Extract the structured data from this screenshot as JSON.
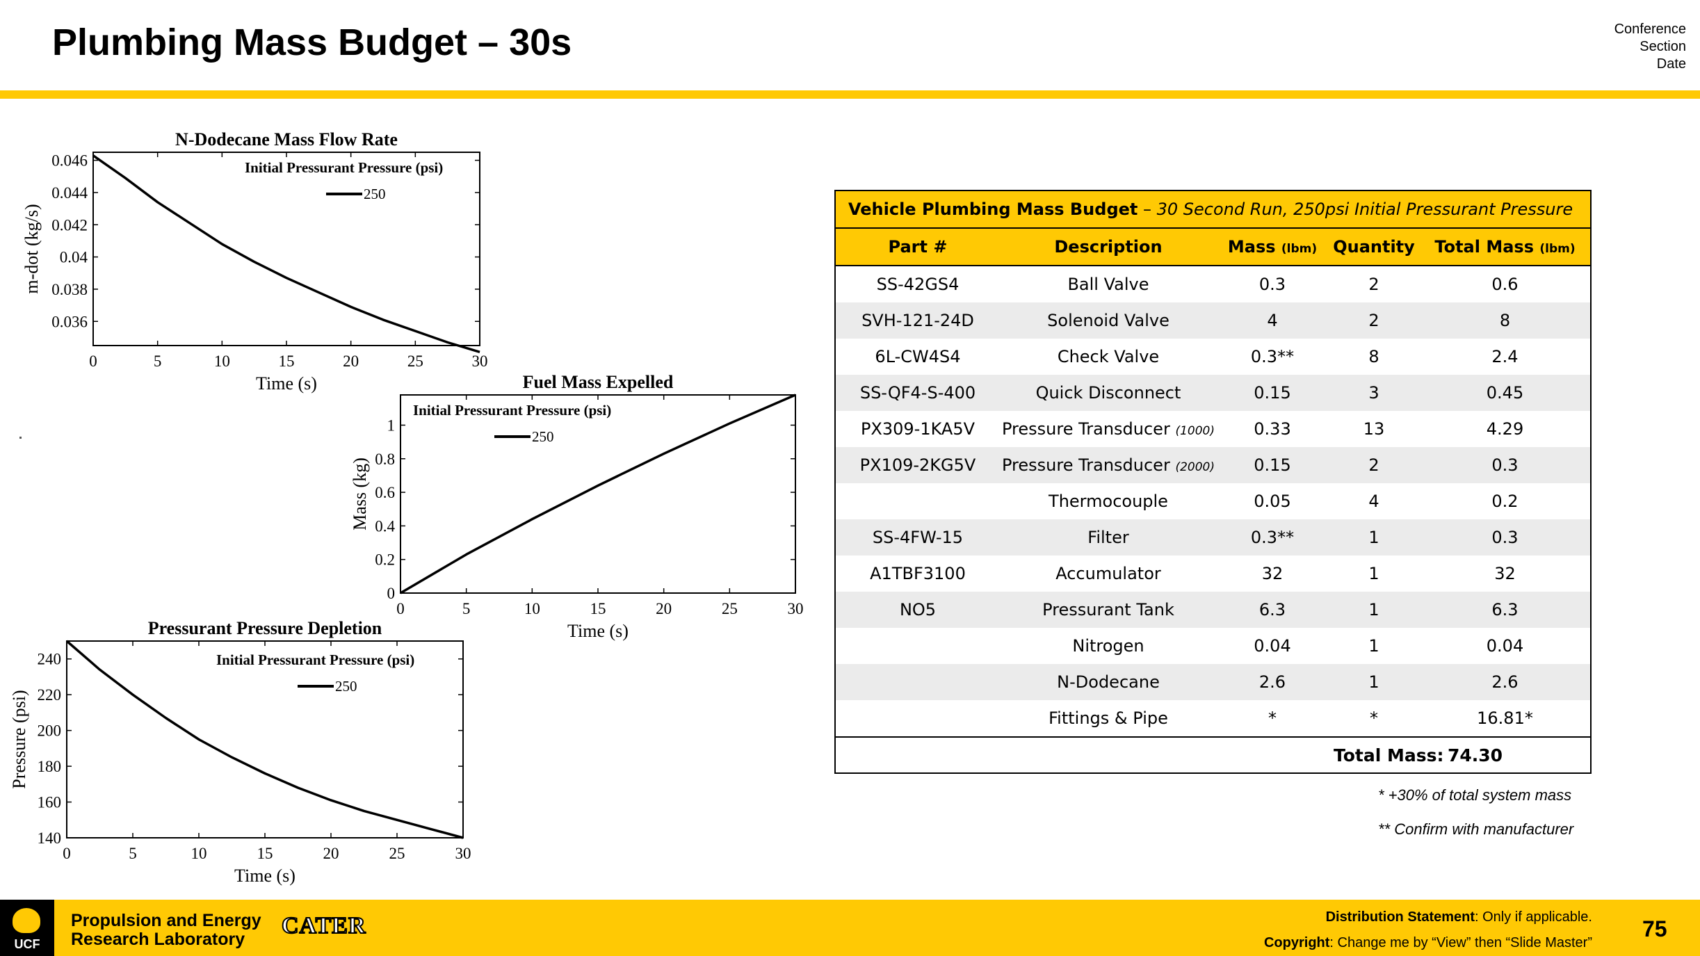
{
  "slide": {
    "title": "Plumbing Mass Budget – 30s",
    "meta": [
      "Conference",
      "Section",
      "Date"
    ],
    "accent_color": "#ffc904"
  },
  "chart_data": [
    {
      "type": "line",
      "title": "N-Dodecane Mass Flow Rate",
      "xlabel": "Time (s)",
      "ylabel": "m-dot (kg/s)",
      "xlim": [
        0,
        30
      ],
      "ylim": [
        0.0345,
        0.0465
      ],
      "xticks": [
        "0",
        "5",
        "10",
        "15",
        "20",
        "25",
        "30"
      ],
      "yticks": [
        "0.036",
        "0.038",
        "0.04",
        "0.042",
        "0.044",
        "0.046"
      ],
      "yticks_values": [
        0.036,
        0.038,
        0.04,
        0.042,
        0.044,
        0.046
      ],
      "legend_title": "Initial Pressurant Pressure (psi)",
      "series": [
        {
          "name": "250",
          "x": [
            0,
            2.5,
            5,
            7.5,
            10,
            12.5,
            15,
            17.5,
            20,
            22.5,
            25,
            27.5,
            30
          ],
          "values": [
            0.0463,
            0.0449,
            0.0434,
            0.0421,
            0.0408,
            0.0397,
            0.0387,
            0.0378,
            0.0369,
            0.0361,
            0.0354,
            0.0347,
            0.0341
          ]
        }
      ]
    },
    {
      "type": "line",
      "title": "Fuel Mass Expelled",
      "xlabel": "Time (s)",
      "ylabel": "Mass (kg)",
      "xlim": [
        0,
        30
      ],
      "ylim": [
        0,
        1.18
      ],
      "xticks": [
        "0",
        "5",
        "10",
        "15",
        "20",
        "25",
        "30"
      ],
      "yticks": [
        "0",
        "0.2",
        "0.4",
        "0.6",
        "0.8",
        "1"
      ],
      "yticks_values": [
        0,
        0.2,
        0.4,
        0.6,
        0.8,
        1
      ],
      "legend_title": "Initial Pressurant Pressure (psi)",
      "series": [
        {
          "name": "250",
          "x": [
            0,
            5,
            10,
            15,
            20,
            25,
            30
          ],
          "values": [
            0,
            0.23,
            0.44,
            0.64,
            0.83,
            1.01,
            1.18
          ]
        }
      ]
    },
    {
      "type": "line",
      "title": "Pressurant Pressure Depletion",
      "xlabel": "Time (s)",
      "ylabel": "Pressure (psi)",
      "xlim": [
        0,
        30
      ],
      "ylim": [
        140,
        250
      ],
      "xticks": [
        "0",
        "5",
        "10",
        "15",
        "20",
        "25",
        "30"
      ],
      "yticks": [
        "140",
        "160",
        "180",
        "200",
        "220",
        "240"
      ],
      "yticks_values": [
        140,
        160,
        180,
        200,
        220,
        240
      ],
      "legend_title": "Initial Pressurant Pressure (psi)",
      "series": [
        {
          "name": "250",
          "x": [
            0,
            2.5,
            5,
            7.5,
            10,
            12.5,
            15,
            17.5,
            20,
            22.5,
            25,
            27.5,
            30
          ],
          "values": [
            250,
            234,
            220,
            207,
            195,
            185,
            176,
            168,
            161,
            155,
            150,
            145,
            140
          ]
        }
      ]
    }
  ],
  "table": {
    "title_bold": "Vehicle Plumbing Mass Budget",
    "title_dash": " – ",
    "title_italic": "30 Second Run, 250psi Initial Pressurant Pressure",
    "headers": {
      "part": "Part #",
      "description": "Description",
      "mass": "Mass",
      "mass_unit": "(lbm)",
      "quantity": "Quantity",
      "total_mass": "Total Mass",
      "total_mass_unit": "(lbm)"
    },
    "rows": [
      {
        "part": "SS-42GS4",
        "description": "Ball Valve",
        "desc_note": "",
        "mass": "0.3",
        "quantity": "2",
        "total": "0.6"
      },
      {
        "part": "SVH-121-24D",
        "description": "Solenoid Valve",
        "desc_note": "",
        "mass": "4",
        "quantity": "2",
        "total": "8"
      },
      {
        "part": "6L-CW4S4",
        "description": "Check Valve",
        "desc_note": "",
        "mass": "0.3**",
        "quantity": "8",
        "total": "2.4"
      },
      {
        "part": "SS-QF4-S-400",
        "description": "Quick Disconnect",
        "desc_note": "",
        "mass": "0.15",
        "quantity": "3",
        "total": "0.45"
      },
      {
        "part": "PX309-1KA5V",
        "description": "Pressure Transducer",
        "desc_note": "(1000)",
        "mass": "0.33",
        "quantity": "13",
        "total": "4.29"
      },
      {
        "part": "PX109-2KG5V",
        "description": "Pressure Transducer",
        "desc_note": "(2000)",
        "mass": "0.15",
        "quantity": "2",
        "total": "0.3"
      },
      {
        "part": "",
        "description": "Thermocouple",
        "desc_note": "",
        "mass": "0.05",
        "quantity": "4",
        "total": "0.2"
      },
      {
        "part": "SS-4FW-15",
        "description": "Filter",
        "desc_note": "",
        "mass": "0.3**",
        "quantity": "1",
        "total": "0.3"
      },
      {
        "part": "A1TBF3100",
        "description": "Accumulator",
        "desc_note": "",
        "mass": "32",
        "quantity": "1",
        "total": "32"
      },
      {
        "part": "NO5",
        "description": "Pressurant Tank",
        "desc_note": "",
        "mass": "6.3",
        "quantity": "1",
        "total": "6.3"
      },
      {
        "part": "",
        "description": "Nitrogen",
        "desc_note": "",
        "mass": "0.04",
        "quantity": "1",
        "total": "0.04"
      },
      {
        "part": "",
        "description": "N-Dodecane",
        "desc_note": "",
        "mass": "2.6",
        "quantity": "1",
        "total": "2.6"
      },
      {
        "part": "",
        "description": "Fittings & Pipe",
        "desc_note": "",
        "mass": "*",
        "quantity": "*",
        "total": "16.81*"
      }
    ],
    "total_label": "Total Mass:",
    "total_value": "74.30",
    "notes": [
      "* +30% of total system mass",
      "** Confirm with manufacturer"
    ]
  },
  "footer": {
    "ucf_text": "UCF",
    "lab_line1": "Propulsion and Energy",
    "lab_line2": "Research Laboratory",
    "cater_text": "CATER",
    "distribution_label": "Distribution Statement",
    "distribution_value": ": Only if applicable.",
    "copyright_label": "Copyright",
    "copyright_value": ": Change me by “View” then “Slide Master”",
    "page_number": "75"
  }
}
